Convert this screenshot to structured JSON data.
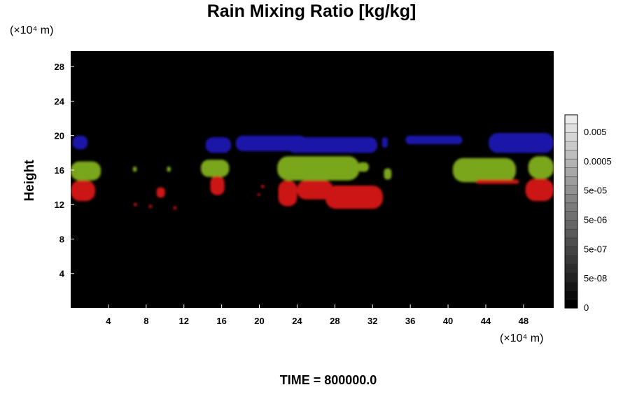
{
  "chart_data": {
    "type": "heatmap",
    "title": "Rain Mixing Ratio [kg/kg]",
    "ylabel": "Height",
    "x_units": "(×10⁴ m)",
    "y_units": "(×10⁴ m)",
    "x_ticks": [
      4,
      8,
      12,
      16,
      20,
      24,
      28,
      32,
      36,
      40,
      44,
      48
    ],
    "y_ticks": [
      4,
      8,
      12,
      16,
      20,
      24,
      28
    ],
    "xlim": [
      0,
      51.2
    ],
    "ylim": [
      0,
      29.8
    ],
    "time_label": "TIME = 800000.0",
    "colorbar": {
      "labels": [
        "0",
        "5e-08",
        "5e-07",
        "5e-06",
        "5e-05",
        "0.0005",
        "0.005"
      ],
      "levels": 22
    },
    "layers": [
      {
        "color": "#1b16a8",
        "regions": [
          {
            "x": [
              0.2,
              1.8
            ],
            "y": [
              18.4,
              20.0
            ]
          },
          {
            "x": [
              14.3,
              17.0
            ],
            "y": [
              18.0,
              19.8
            ]
          },
          {
            "x": [
              17.5,
              25.0
            ],
            "y": [
              18.2,
              20.0
            ]
          },
          {
            "x": [
              23.0,
              32.5
            ],
            "y": [
              18.0,
              19.8
            ]
          },
          {
            "x": [
              33.0,
              33.6
            ],
            "y": [
              18.6,
              19.8
            ]
          },
          {
            "x": [
              35.5,
              41.5
            ],
            "y": [
              19.0,
              20.0
            ]
          },
          {
            "x": [
              44.3,
              51.2
            ],
            "y": [
              18.0,
              20.3
            ]
          }
        ]
      },
      {
        "color": "#7aa61e",
        "regions": [
          {
            "x": [
              0.0,
              3.2
            ],
            "y": [
              14.8,
              17.0
            ]
          },
          {
            "x": [
              6.6,
              7.0
            ],
            "y": [
              15.8,
              16.4
            ]
          },
          {
            "x": [
              10.2,
              10.6
            ],
            "y": [
              15.8,
              16.4
            ]
          },
          {
            "x": [
              13.8,
              16.8
            ],
            "y": [
              15.2,
              17.2
            ]
          },
          {
            "x": [
              21.9,
              30.6
            ],
            "y": [
              14.8,
              17.6
            ]
          },
          {
            "x": [
              30.4,
              31.6
            ],
            "y": [
              15.8,
              16.9
            ]
          },
          {
            "x": [
              33.2,
              34.0
            ],
            "y": [
              14.9,
              16.2
            ]
          },
          {
            "x": [
              40.5,
              47.2
            ],
            "y": [
              14.6,
              17.4
            ]
          },
          {
            "x": [
              48.5,
              51.2
            ],
            "y": [
              15.0,
              17.6
            ]
          }
        ]
      },
      {
        "color": "#cc1414",
        "regions": [
          {
            "x": [
              0.0,
              2.6
            ],
            "y": [
              12.4,
              14.8
            ]
          },
          {
            "x": [
              6.7,
              7.0
            ],
            "y": [
              11.8,
              12.2
            ]
          },
          {
            "x": [
              8.3,
              8.6
            ],
            "y": [
              11.6,
              12.0
            ]
          },
          {
            "x": [
              9.1,
              10.0
            ],
            "y": [
              12.8,
              14.0
            ]
          },
          {
            "x": [
              10.9,
              11.2
            ],
            "y": [
              11.4,
              11.8
            ]
          },
          {
            "x": [
              14.8,
              16.3
            ],
            "y": [
              13.1,
              15.3
            ]
          },
          {
            "x": [
              19.8,
              20.1
            ],
            "y": [
              13.0,
              13.3
            ]
          },
          {
            "x": [
              20.2,
              20.5
            ],
            "y": [
              13.9,
              14.3
            ]
          },
          {
            "x": [
              22.0,
              24.0
            ],
            "y": [
              11.8,
              14.8
            ]
          },
          {
            "x": [
              24.0,
              27.8
            ],
            "y": [
              12.6,
              14.8
            ]
          },
          {
            "x": [
              27.0,
              33.1
            ],
            "y": [
              11.5,
              14.2
            ]
          },
          {
            "x": [
              43.0,
              47.5
            ],
            "y": [
              14.4,
              14.9
            ]
          },
          {
            "x": [
              48.2,
              51.2
            ],
            "y": [
              12.4,
              15.0
            ]
          }
        ]
      }
    ]
  }
}
